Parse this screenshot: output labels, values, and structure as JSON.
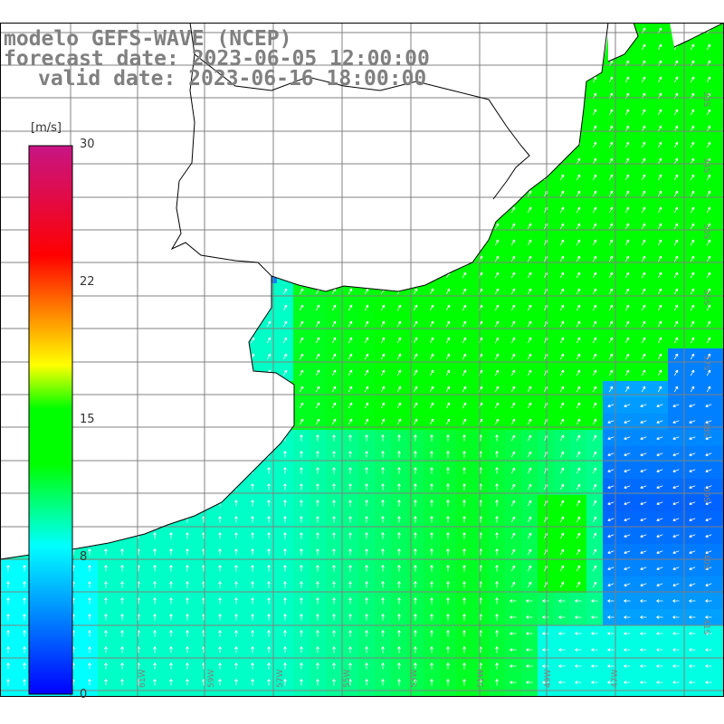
{
  "header": {
    "model": "modelo GEFS-WAVE (NCEP)",
    "forecast": "forecast date: 2023-06-05 12:00:00",
    "valid": "valid date: 2023-06-16 18:00:00"
  },
  "colorbar": {
    "unit": "[m/s]",
    "ticks": [
      "30",
      "22",
      "15",
      "8",
      "0"
    ],
    "tick_values": [
      30,
      22,
      15,
      8,
      0
    ],
    "colors": [
      "#0000ff",
      "#00ffff",
      "#00ff00",
      "#ffff00",
      "#ff0000",
      "#c71585"
    ]
  },
  "map": {
    "lon_labels": [
      "61W",
      "59W",
      "57W",
      "55W",
      "53W",
      "51W",
      "49W",
      "47W"
    ],
    "lat_labels": [
      "33S",
      "34S",
      "35S",
      "36S",
      "37S",
      "38S",
      "39S",
      "40S",
      "41S"
    ],
    "land_color": "#ffffff",
    "grid_color": "#808080",
    "coast_color": "#000000",
    "arrow_color": "#ffffff"
  }
}
